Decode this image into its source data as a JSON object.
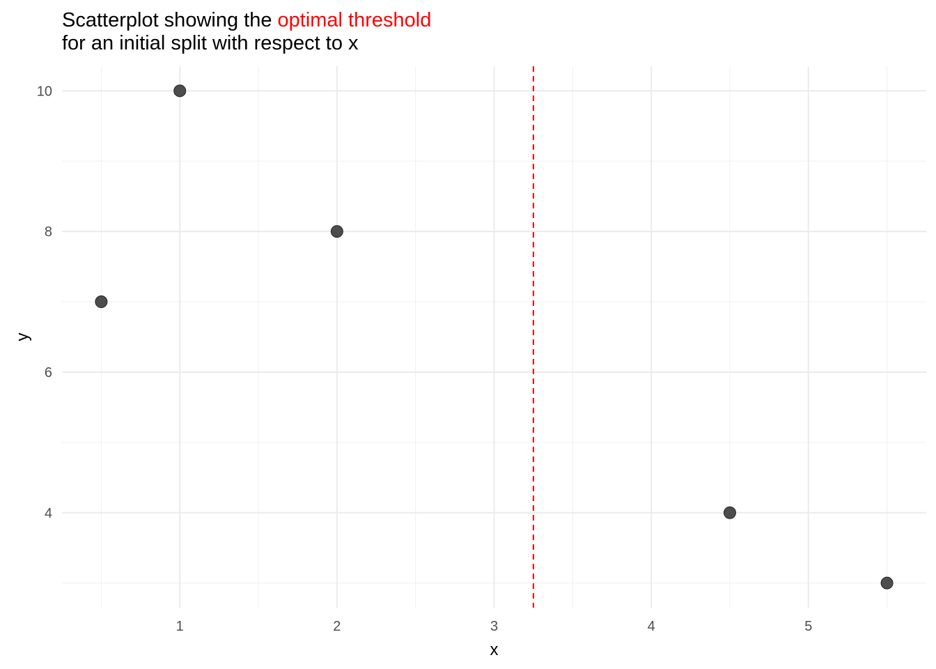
{
  "chart_data": {
    "type": "scatter",
    "title_parts": [
      {
        "text": "Scatterplot showing the ",
        "color": "#000000"
      },
      {
        "text": "optimal threshold",
        "color": "#ff0000"
      }
    ],
    "subtitle": "for an initial split with respect to x",
    "xlabel": "x",
    "ylabel": "y",
    "x_ticks": [
      1,
      2,
      3,
      4,
      5
    ],
    "y_ticks": [
      4,
      6,
      8,
      10
    ],
    "x_range": [
      0.25,
      5.75
    ],
    "y_range": [
      2.65,
      10.35
    ],
    "grid": true,
    "points": [
      {
        "x": 0.5,
        "y": 7
      },
      {
        "x": 1,
        "y": 10
      },
      {
        "x": 2,
        "y": 8
      },
      {
        "x": 4.5,
        "y": 4
      },
      {
        "x": 5.5,
        "y": 3
      }
    ],
    "threshold": {
      "x": 3.25,
      "color": "#ff0000",
      "style": "dashed"
    },
    "point_color": "#4d4d4d"
  }
}
